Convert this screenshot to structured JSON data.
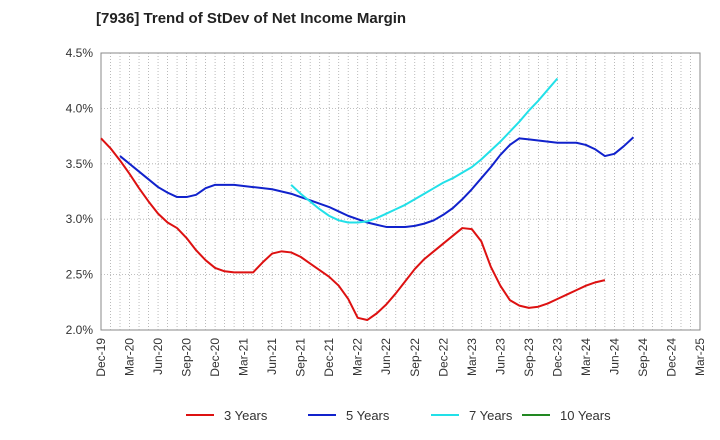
{
  "chart_data": {
    "type": "line",
    "title": "[7936]  Trend of StDev of Net Income Margin",
    "xlabel": "",
    "ylabel": "",
    "ylim": [
      2.0,
      4.5
    ],
    "y_ticks": [
      "2.0%",
      "2.5%",
      "3.0%",
      "3.5%",
      "4.0%",
      "4.5%"
    ],
    "y_tick_values": [
      2.0,
      2.5,
      3.0,
      3.5,
      4.0,
      4.5
    ],
    "x_tick_labels": [
      "Dec-19",
      "Mar-20",
      "Jun-20",
      "Sep-20",
      "Dec-20",
      "Mar-21",
      "Jun-21",
      "Sep-21",
      "Dec-21",
      "Mar-22",
      "Jun-22",
      "Sep-22",
      "Dec-22",
      "Mar-23",
      "Jun-23",
      "Sep-23",
      "Dec-23",
      "Mar-24",
      "Jun-24",
      "Sep-24",
      "Dec-24",
      "Mar-25"
    ],
    "grid": true,
    "legend_position": "bottom",
    "series": [
      {
        "name": "3 Years",
        "color": "#dd1111",
        "points": [
          [
            0,
            3.73
          ],
          [
            1,
            3.64
          ],
          [
            2,
            3.53
          ],
          [
            3,
            3.41
          ],
          [
            4,
            3.28
          ],
          [
            5,
            3.16
          ],
          [
            6,
            3.05
          ],
          [
            7,
            2.97
          ],
          [
            8,
            2.92
          ],
          [
            9,
            2.83
          ],
          [
            10,
            2.72
          ],
          [
            11,
            2.63
          ],
          [
            12,
            2.56
          ],
          [
            13,
            2.53
          ],
          [
            14,
            2.52
          ],
          [
            15,
            2.52
          ],
          [
            16,
            2.52
          ],
          [
            17,
            2.61
          ],
          [
            18,
            2.69
          ],
          [
            19,
            2.71
          ],
          [
            20,
            2.7
          ],
          [
            21,
            2.66
          ],
          [
            22,
            2.6
          ],
          [
            23,
            2.54
          ],
          [
            24,
            2.48
          ],
          [
            25,
            2.4
          ],
          [
            26,
            2.28
          ],
          [
            27,
            2.11
          ],
          [
            28,
            2.09
          ],
          [
            29,
            2.15
          ],
          [
            30,
            2.23
          ],
          [
            31,
            2.33
          ],
          [
            32,
            2.44
          ],
          [
            33,
            2.55
          ],
          [
            34,
            2.64
          ],
          [
            35,
            2.71
          ],
          [
            36,
            2.78
          ],
          [
            37,
            2.85
          ],
          [
            38,
            2.92
          ],
          [
            39,
            2.91
          ],
          [
            40,
            2.8
          ],
          [
            41,
            2.57
          ],
          [
            42,
            2.4
          ],
          [
            43,
            2.27
          ],
          [
            44,
            2.22
          ],
          [
            45,
            2.2
          ],
          [
            46,
            2.21
          ],
          [
            47,
            2.24
          ],
          [
            48,
            2.28
          ],
          [
            49,
            2.32
          ],
          [
            50,
            2.36
          ],
          [
            51,
            2.4
          ],
          [
            52,
            2.43
          ],
          [
            53,
            2.45
          ]
        ]
      },
      {
        "name": "5 Years",
        "color": "#1122cc",
        "points": [
          [
            2,
            3.57
          ],
          [
            3,
            3.5
          ],
          [
            4,
            3.43
          ],
          [
            5,
            3.36
          ],
          [
            6,
            3.29
          ],
          [
            7,
            3.24
          ],
          [
            8,
            3.2
          ],
          [
            9,
            3.2
          ],
          [
            10,
            3.22
          ],
          [
            11,
            3.28
          ],
          [
            12,
            3.31
          ],
          [
            13,
            3.31
          ],
          [
            14,
            3.31
          ],
          [
            15,
            3.3
          ],
          [
            16,
            3.29
          ],
          [
            17,
            3.28
          ],
          [
            18,
            3.27
          ],
          [
            19,
            3.25
          ],
          [
            20,
            3.23
          ],
          [
            21,
            3.2
          ],
          [
            22,
            3.17
          ],
          [
            23,
            3.14
          ],
          [
            24,
            3.11
          ],
          [
            25,
            3.07
          ],
          [
            26,
            3.03
          ],
          [
            27,
            3.0
          ],
          [
            28,
            2.97
          ],
          [
            29,
            2.95
          ],
          [
            30,
            2.93
          ],
          [
            31,
            2.93
          ],
          [
            32,
            2.93
          ],
          [
            33,
            2.94
          ],
          [
            34,
            2.96
          ],
          [
            35,
            2.99
          ],
          [
            36,
            3.04
          ],
          [
            37,
            3.1
          ],
          [
            38,
            3.18
          ],
          [
            39,
            3.27
          ],
          [
            40,
            3.37
          ],
          [
            41,
            3.47
          ],
          [
            42,
            3.58
          ],
          [
            43,
            3.67
          ],
          [
            44,
            3.73
          ],
          [
            45,
            3.72
          ],
          [
            46,
            3.71
          ],
          [
            47,
            3.7
          ],
          [
            48,
            3.69
          ],
          [
            49,
            3.69
          ],
          [
            50,
            3.69
          ],
          [
            51,
            3.67
          ],
          [
            52,
            3.63
          ],
          [
            53,
            3.57
          ],
          [
            54,
            3.59
          ],
          [
            55,
            3.66
          ],
          [
            56,
            3.74
          ]
        ]
      },
      {
        "name": "7 Years",
        "color": "#22e0e8",
        "points": [
          [
            20,
            3.31
          ],
          [
            21,
            3.23
          ],
          [
            22,
            3.16
          ],
          [
            23,
            3.09
          ],
          [
            24,
            3.03
          ],
          [
            25,
            2.99
          ],
          [
            26,
            2.97
          ],
          [
            27,
            2.97
          ],
          [
            28,
            2.98
          ],
          [
            29,
            3.01
          ],
          [
            30,
            3.05
          ],
          [
            31,
            3.09
          ],
          [
            32,
            3.13
          ],
          [
            33,
            3.18
          ],
          [
            34,
            3.23
          ],
          [
            35,
            3.28
          ],
          [
            36,
            3.33
          ],
          [
            37,
            3.37
          ],
          [
            38,
            3.42
          ],
          [
            39,
            3.47
          ],
          [
            40,
            3.54
          ],
          [
            41,
            3.62
          ],
          [
            42,
            3.7
          ],
          [
            43,
            3.79
          ],
          [
            44,
            3.88
          ],
          [
            45,
            3.98
          ],
          [
            46,
            4.07
          ],
          [
            47,
            4.17
          ],
          [
            48,
            4.27
          ]
        ]
      },
      {
        "name": "10 Years",
        "color": "#228822",
        "points": []
      }
    ]
  }
}
